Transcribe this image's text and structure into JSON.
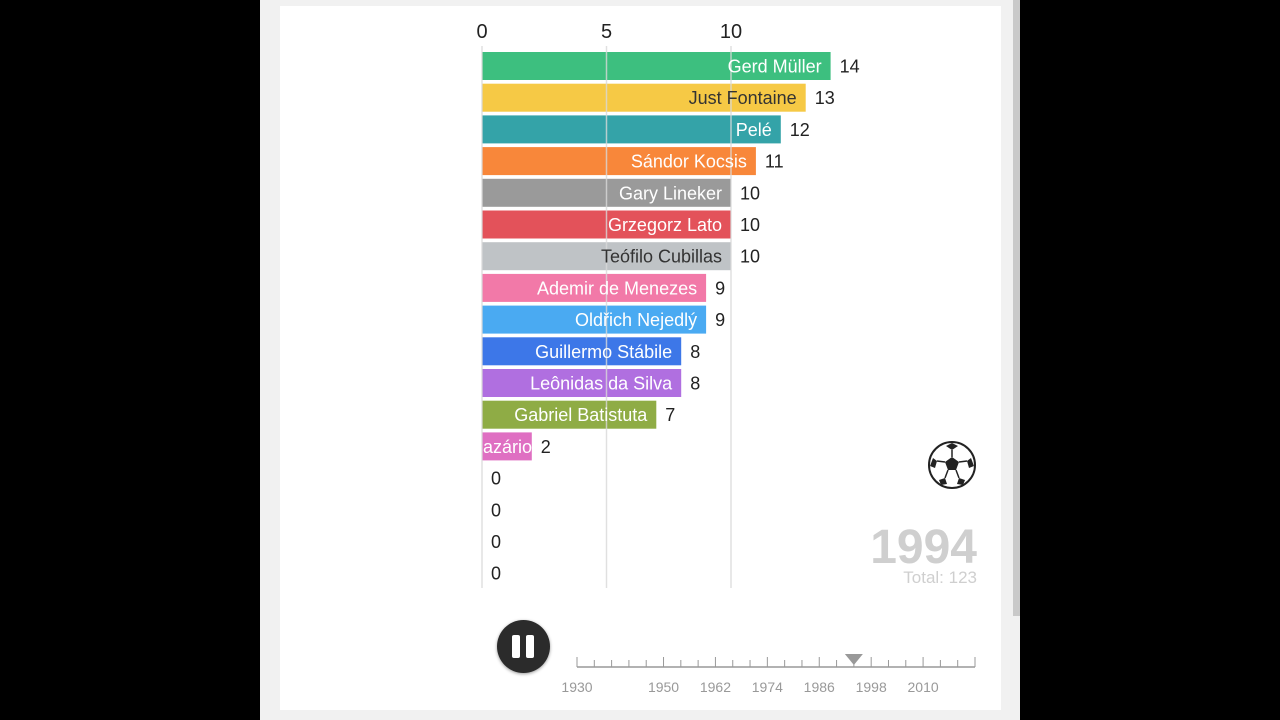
{
  "chart_data": {
    "type": "bar",
    "orientation": "horizontal",
    "categories": [
      "Gerd Müller",
      "Just Fontaine",
      "Pelé",
      "Sándor Kocsis",
      "Gary Lineker",
      "Grzegorz Lato",
      "Teófilo Cubillas",
      "Ademir de Menezes",
      "Oldřich Nejedlý",
      "Guillermo Stábile",
      "Leônidas da Silva",
      "Gabriel Batistuta",
      "azário",
      "",
      "",
      "",
      ""
    ],
    "values": [
      14,
      13,
      12,
      11,
      10,
      10,
      10,
      9,
      9,
      8,
      8,
      7,
      2,
      0,
      0,
      0,
      0
    ],
    "colors": [
      "#3dbf7f",
      "#f6c945",
      "#34a3a8",
      "#f8873a",
      "#9a9a9a",
      "#e3525a",
      "#bfc3c6",
      "#f279a8",
      "#4aaaf2",
      "#3d77e8",
      "#b06fe0",
      "#8fac45",
      "#df6fc2",
      "#cccccc",
      "#cccccc",
      "#cccccc",
      "#cccccc"
    ],
    "label_colors": [
      "#ffffff",
      "#333333",
      "#ffffff",
      "#ffffff",
      "#ffffff",
      "#ffffff",
      "#333333",
      "#ffffff",
      "#ffffff",
      "#ffffff",
      "#ffffff",
      "#ffffff",
      "#ffffff",
      "#ffffff",
      "#ffffff",
      "#ffffff",
      "#ffffff"
    ],
    "x_ticks": [
      0,
      5,
      10
    ],
    "xlim": [
      0,
      14
    ],
    "grid": true
  },
  "overlay": {
    "year": "1994",
    "total": "Total: 123"
  },
  "timeline": {
    "labels": [
      "1930",
      "1950",
      "1962",
      "1974",
      "1986",
      "1998",
      "2010"
    ],
    "current_year": 1994,
    "range": [
      1930,
      2022
    ]
  },
  "controls": {
    "pause_icon": "pause-icon",
    "ball_icon": "soccer-ball-icon"
  }
}
